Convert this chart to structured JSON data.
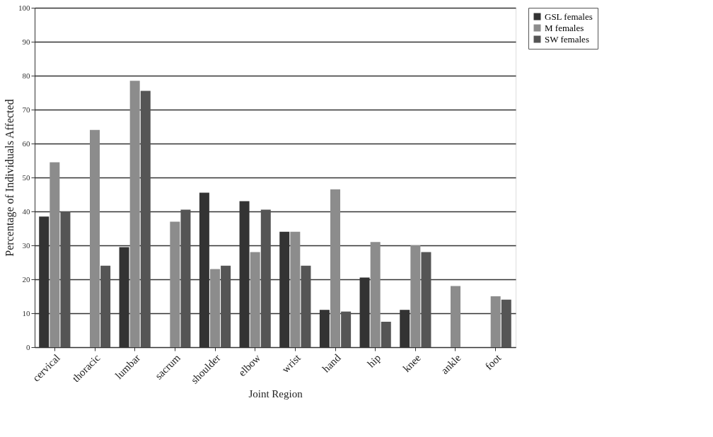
{
  "chart_data": {
    "type": "bar",
    "xlabel": "Joint Region",
    "ylabel": "Percentage of Individuals Affected",
    "categories": [
      "cervical",
      "thoracic",
      "lumbar",
      "sacrum",
      "shoulder",
      "elbow",
      "wrist",
      "hand",
      "hip",
      "knee",
      "ankle",
      "foot"
    ],
    "series": [
      {
        "name": "GSL females",
        "color": "#333333",
        "values": [
          38.5,
          null,
          29.5,
          null,
          45.5,
          43,
          34,
          11,
          20.5,
          11,
          null,
          null
        ]
      },
      {
        "name": "M females",
        "color": "#8c8c8c",
        "values": [
          54.5,
          64,
          78.5,
          37,
          23,
          28,
          34,
          46.5,
          31,
          30,
          18,
          15
        ]
      },
      {
        "name": "SW females",
        "color": "#555555",
        "values": [
          40,
          24,
          75.5,
          40.5,
          24,
          40.5,
          24,
          10.5,
          7.5,
          28,
          null,
          14
        ]
      }
    ],
    "ylim": [
      0,
      100
    ],
    "yticks": [
      0,
      10,
      20,
      30,
      40,
      50,
      60,
      70,
      80,
      90,
      100
    ],
    "grid": "y",
    "legend": "right"
  }
}
